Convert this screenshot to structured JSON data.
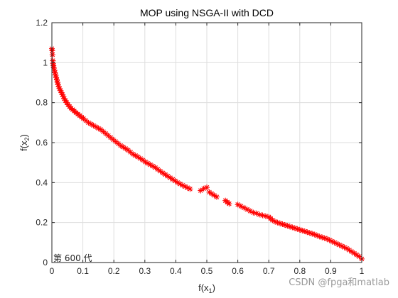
{
  "chart_data": {
    "type": "scatter",
    "title": "MOP using NSGA-II with DCD",
    "xlabel": {
      "main": "f(x",
      "sub": "1",
      "close": ")"
    },
    "ylabel": {
      "main": "f(x",
      "sub": "2",
      "close": ")"
    },
    "xlim": [
      0,
      1
    ],
    "ylim": [
      0,
      1.2
    ],
    "xticks": [
      "0",
      "0.1",
      "0.2",
      "0.3",
      "0.4",
      "0.5",
      "0.6",
      "0.7",
      "0.8",
      "0.9",
      "1"
    ],
    "xtick_values": [
      0,
      0.1,
      0.2,
      0.3,
      0.4,
      0.5,
      0.6,
      0.7,
      0.8,
      0.9,
      1
    ],
    "yticks": [
      "0",
      "0.2",
      "0.4",
      "0.6",
      "0.8",
      "1",
      "1.2"
    ],
    "ytick_values": [
      0,
      0.2,
      0.4,
      0.6,
      0.8,
      1,
      1.2
    ],
    "grid": true,
    "marker": "*",
    "marker_color": "#ff0000",
    "annotation": "第 600 代",
    "series": [
      {
        "x": [
          0.0,
          0.001,
          0.002,
          0.003,
          0.004,
          0.005,
          0.006,
          0.008,
          0.01,
          0.012,
          0.014,
          0.016,
          0.018,
          0.02,
          0.022,
          0.025,
          0.028,
          0.031,
          0.034,
          0.037,
          0.04,
          0.044,
          0.048,
          0.052,
          0.057,
          0.062,
          0.067,
          0.072,
          0.078,
          0.084,
          0.09,
          0.096,
          0.102,
          0.11,
          0.118,
          0.126,
          0.134,
          0.142,
          0.15,
          0.158,
          0.166,
          0.174,
          0.182,
          0.19,
          0.198,
          0.206,
          0.214,
          0.222,
          0.23,
          0.238,
          0.246,
          0.254,
          0.262,
          0.27,
          0.278,
          0.286,
          0.294,
          0.302,
          0.31,
          0.318,
          0.326,
          0.334,
          0.342,
          0.35,
          0.358,
          0.366,
          0.374,
          0.382,
          0.39,
          0.398,
          0.406,
          0.414,
          0.422,
          0.43,
          0.438,
          0.446,
          0.48,
          0.49,
          0.5,
          0.508,
          0.516,
          0.524,
          0.532,
          0.56,
          0.566,
          0.572,
          0.6,
          0.61,
          0.62,
          0.63,
          0.64,
          0.65,
          0.66,
          0.67,
          0.68,
          0.69,
          0.7,
          0.706,
          0.712,
          0.72,
          0.728,
          0.736,
          0.744,
          0.752,
          0.76,
          0.768,
          0.776,
          0.784,
          0.792,
          0.8,
          0.808,
          0.816,
          0.824,
          0.832,
          0.84,
          0.848,
          0.856,
          0.864,
          0.872,
          0.88,
          0.888,
          0.896,
          0.904,
          0.912,
          0.92,
          0.928,
          0.936,
          0.944,
          0.952,
          0.96,
          0.968,
          0.976,
          0.984,
          0.992,
          1.0
        ],
        "y": [
          1.07,
          1.06,
          1.04,
          1.01,
          0.995,
          0.985,
          0.975,
          0.962,
          0.95,
          0.938,
          0.926,
          0.914,
          0.902,
          0.89,
          0.88,
          0.87,
          0.86,
          0.85,
          0.84,
          0.83,
          0.82,
          0.81,
          0.8,
          0.79,
          0.78,
          0.772,
          0.765,
          0.758,
          0.75,
          0.743,
          0.735,
          0.727,
          0.72,
          0.71,
          0.7,
          0.693,
          0.686,
          0.679,
          0.672,
          0.665,
          0.655,
          0.645,
          0.635,
          0.625,
          0.615,
          0.605,
          0.595,
          0.585,
          0.578,
          0.57,
          0.562,
          0.552,
          0.542,
          0.535,
          0.528,
          0.52,
          0.512,
          0.503,
          0.496,
          0.489,
          0.482,
          0.475,
          0.466,
          0.457,
          0.448,
          0.44,
          0.432,
          0.424,
          0.416,
          0.408,
          0.4,
          0.393,
          0.386,
          0.38,
          0.374,
          0.368,
          0.36,
          0.37,
          0.376,
          0.352,
          0.344,
          0.336,
          0.328,
          0.31,
          0.302,
          0.294,
          0.29,
          0.282,
          0.274,
          0.266,
          0.258,
          0.25,
          0.246,
          0.24,
          0.236,
          0.232,
          0.228,
          0.22,
          0.212,
          0.205,
          0.2,
          0.196,
          0.192,
          0.188,
          0.184,
          0.18,
          0.176,
          0.172,
          0.168,
          0.164,
          0.16,
          0.156,
          0.152,
          0.148,
          0.144,
          0.14,
          0.135,
          0.13,
          0.126,
          0.122,
          0.118,
          0.112,
          0.106,
          0.1,
          0.094,
          0.088,
          0.082,
          0.076,
          0.07,
          0.062,
          0.054,
          0.046,
          0.038,
          0.03,
          0.018
        ]
      }
    ]
  },
  "watermark": "CSDN @fpga和matlab"
}
